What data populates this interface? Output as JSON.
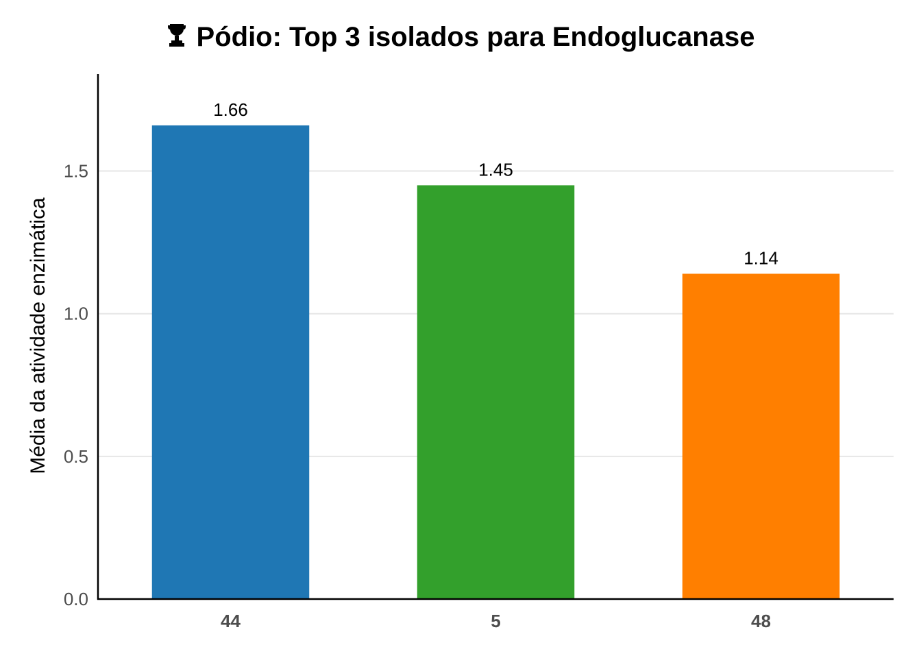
{
  "chart_data": {
    "type": "bar",
    "title": "Pódio: Top 3 isolados para Endoglucanase",
    "title_icon": "trophy-icon",
    "xlabel": "",
    "ylabel": "Média da atividade enzimática",
    "categories": [
      "44",
      "5",
      "48"
    ],
    "values": [
      1.66,
      1.45,
      1.14
    ],
    "value_labels": [
      "1.66",
      "1.45",
      "1.14"
    ],
    "colors": [
      "#1f77b4",
      "#33a02c",
      "#ff7f00"
    ],
    "ylim": [
      0,
      1.84
    ],
    "yticks": [
      0.0,
      0.5,
      1.0,
      1.5
    ],
    "ytick_labels": [
      "0.0",
      "0.5",
      "1.0",
      "1.5"
    ],
    "grid": "horizontal",
    "legend": "none"
  }
}
